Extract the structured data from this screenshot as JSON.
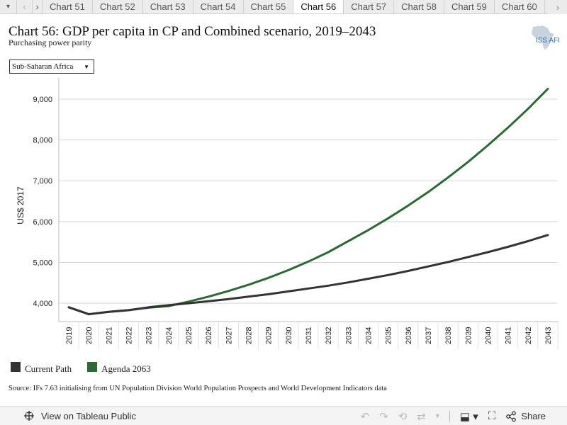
{
  "tabs": {
    "items": [
      "Chart 51",
      "Chart 52",
      "Chart 53",
      "Chart 54",
      "Chart 55",
      "Chart 56",
      "Chart 57",
      "Chart 58",
      "Chart 59",
      "Chart 60"
    ],
    "active": "Chart 56"
  },
  "header": {
    "title": "Chart 56: GDP per capita in CP and Combined scenario, 2019–2043",
    "subtitle": "Purchasing power parity",
    "logo_text": "ISS AFI"
  },
  "filter": {
    "selected": "Sub-Saharan Africa"
  },
  "chart_data": {
    "type": "line",
    "ylabel": "US$ 2017",
    "xlabel": "",
    "ylim": [
      3550,
      9450
    ],
    "yticks": [
      4000,
      5000,
      6000,
      7000,
      8000,
      9000
    ],
    "ytick_labels": [
      "4,000",
      "5,000",
      "6,000",
      "7,000",
      "8,000",
      "9,000"
    ],
    "x": [
      "2019",
      "2020",
      "2021",
      "2022",
      "2023",
      "2024",
      "2025",
      "2026",
      "2027",
      "2028",
      "2029",
      "2030",
      "2031",
      "2032",
      "2033",
      "2034",
      "2035",
      "2036",
      "2037",
      "2038",
      "2039",
      "2040",
      "2041",
      "2042",
      "2043"
    ],
    "grid": true,
    "legend_position": "bottom-left",
    "series": [
      {
        "name": "Current Path",
        "color": "#333333",
        "values": [
          3900,
          3730,
          3790,
          3830,
          3900,
          3950,
          4000,
          4050,
          4100,
          4160,
          4220,
          4290,
          4360,
          4430,
          4510,
          4600,
          4690,
          4790,
          4900,
          5010,
          5130,
          5250,
          5380,
          5520,
          5670
        ]
      },
      {
        "name": "Agenda 2063",
        "color": "#2c6a33",
        "values": [
          3900,
          3730,
          3790,
          3830,
          3890,
          3930,
          4040,
          4160,
          4300,
          4450,
          4620,
          4810,
          5020,
          5250,
          5520,
          5790,
          6080,
          6390,
          6720,
          7080,
          7460,
          7870,
          8300,
          8760,
          9250
        ]
      }
    ]
  },
  "legend": {
    "items": [
      {
        "label": "Current Path",
        "color": "#333333"
      },
      {
        "label": "Agenda 2063",
        "color": "#2c6a33"
      }
    ]
  },
  "source": "Source: IFs 7.63 initialising from UN Population Division World Population Prospects and World Development Indicators data",
  "toolbar": {
    "view_label": "View on Tableau Public",
    "share_label": "Share"
  }
}
